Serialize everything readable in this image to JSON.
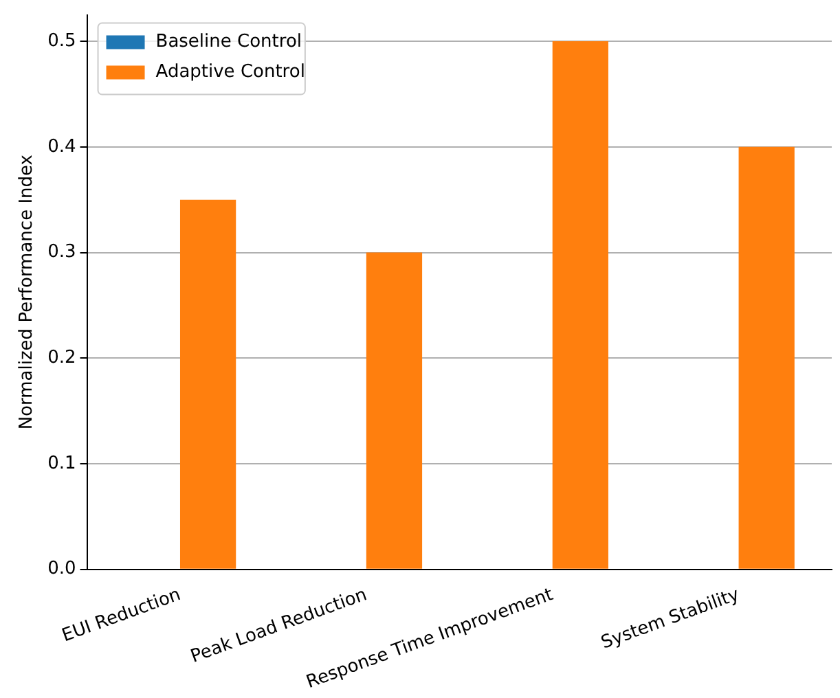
{
  "chart_data": {
    "type": "bar",
    "ylabel": "Normalized Performance Index",
    "categories": [
      "EUI Reduction",
      "Peak Load Reduction",
      "Response Time Improvement",
      "System Stability"
    ],
    "series": [
      {
        "name": "Baseline Control",
        "color": "#1f77b4",
        "values": [
          0,
          0,
          0,
          0
        ]
      },
      {
        "name": "Adaptive Control",
        "color": "#ff7f0e",
        "values": [
          0.35,
          0.3,
          0.5,
          0.4
        ]
      }
    ],
    "ylim": [
      0,
      0.525
    ],
    "yticks": [
      {
        "value": 0,
        "label": "0.0"
      },
      {
        "value": 0.1,
        "label": "0.1"
      },
      {
        "value": 0.2,
        "label": "0.2"
      },
      {
        "value": 0.3,
        "label": "0.3"
      },
      {
        "value": 0.4,
        "label": "0.4"
      },
      {
        "value": 0.5,
        "label": "0.5"
      }
    ],
    "grid": "y",
    "legend": "top left"
  }
}
